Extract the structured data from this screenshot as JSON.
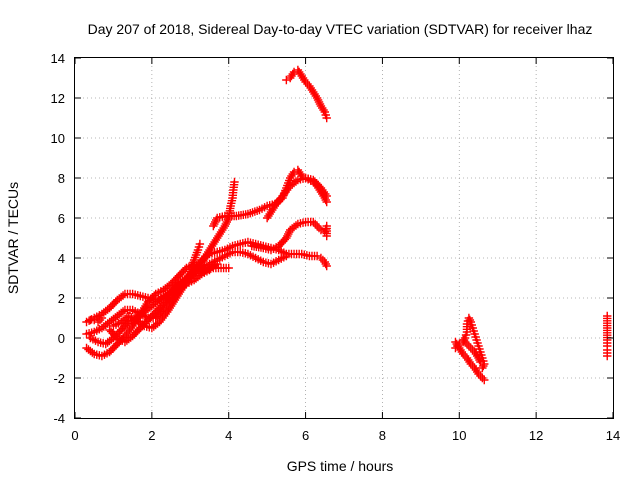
{
  "chart_data": {
    "type": "scatter",
    "title": "Day 207 of 2018, Sidereal Day-to-day VTEC variation (SDTVAR) for receiver lhaz",
    "xlabel": "GPS time / hours",
    "ylabel": "SDTVAR / TECUs",
    "xlim": [
      0,
      14
    ],
    "ylim": [
      -4,
      14
    ],
    "xticks": [
      "0",
      "2",
      "4",
      "6",
      "8",
      "10",
      "12",
      "14"
    ],
    "yticks": [
      "-4",
      "-2",
      "0",
      "2",
      "4",
      "6",
      "8",
      "10",
      "12",
      "14"
    ],
    "grid": true,
    "marker": "plus",
    "color": "#ff0000",
    "series": [
      {
        "points": [
          [
            5.5,
            12.9
          ],
          [
            5.6,
            13.0
          ],
          [
            5.7,
            13.3
          ],
          [
            5.8,
            13.4
          ],
          [
            5.9,
            13.1
          ],
          [
            6.0,
            12.8
          ],
          [
            6.1,
            12.6
          ],
          [
            6.2,
            12.3
          ],
          [
            6.3,
            12.0
          ],
          [
            6.4,
            11.6
          ],
          [
            6.5,
            11.3
          ],
          [
            6.55,
            11.0
          ]
        ]
      },
      {
        "points": [
          [
            3.3,
            3.8
          ],
          [
            3.5,
            4.4
          ],
          [
            3.7,
            5.0
          ],
          [
            3.9,
            5.6
          ],
          [
            4.0,
            6.0
          ],
          [
            4.05,
            6.6
          ],
          [
            4.1,
            7.0
          ],
          [
            4.12,
            7.4
          ],
          [
            4.15,
            7.8
          ]
        ]
      },
      {
        "points": [
          [
            3.6,
            5.6
          ],
          [
            3.7,
            6.0
          ],
          [
            3.9,
            6.1
          ],
          [
            4.2,
            6.1
          ],
          [
            4.5,
            6.2
          ],
          [
            4.8,
            6.4
          ],
          [
            5.0,
            6.6
          ],
          [
            5.2,
            6.7
          ],
          [
            5.4,
            7.0
          ],
          [
            5.5,
            7.5
          ],
          [
            5.6,
            8.0
          ],
          [
            5.7,
            8.3
          ],
          [
            5.8,
            8.4
          ],
          [
            5.9,
            8.1
          ],
          [
            6.0,
            8.0
          ],
          [
            6.2,
            7.8
          ],
          [
            6.3,
            7.6
          ],
          [
            6.4,
            7.3
          ],
          [
            6.5,
            7.0
          ],
          [
            6.55,
            6.8
          ]
        ]
      },
      {
        "points": [
          [
            5.0,
            6.0
          ],
          [
            5.2,
            6.6
          ],
          [
            5.4,
            7.1
          ],
          [
            5.6,
            7.6
          ],
          [
            5.8,
            7.9
          ],
          [
            6.0,
            8.0
          ],
          [
            6.2,
            7.9
          ],
          [
            6.4,
            7.5
          ],
          [
            6.55,
            7.1
          ]
        ]
      },
      {
        "points": [
          [
            4.6,
            4.6
          ],
          [
            4.9,
            4.5
          ],
          [
            5.1,
            4.4
          ],
          [
            5.3,
            4.6
          ],
          [
            5.5,
            5.0
          ],
          [
            5.6,
            5.4
          ],
          [
            5.8,
            5.7
          ],
          [
            6.0,
            5.8
          ],
          [
            6.2,
            5.8
          ],
          [
            6.3,
            5.6
          ],
          [
            6.4,
            5.4
          ],
          [
            6.5,
            5.3
          ],
          [
            6.55,
            5.6
          ],
          [
            6.55,
            5.1
          ]
        ]
      },
      {
        "points": [
          [
            0.3,
            0.8
          ],
          [
            0.5,
            1.0
          ],
          [
            0.7,
            1.2
          ],
          [
            0.9,
            1.5
          ],
          [
            1.1,
            1.9
          ],
          [
            1.3,
            2.2
          ],
          [
            1.5,
            2.2
          ],
          [
            1.7,
            2.1
          ],
          [
            1.9,
            2.0
          ],
          [
            2.1,
            1.9
          ],
          [
            2.3,
            2.0
          ],
          [
            2.5,
            2.3
          ],
          [
            2.7,
            2.7
          ],
          [
            2.9,
            3.0
          ],
          [
            3.1,
            3.4
          ],
          [
            3.3,
            3.9
          ],
          [
            3.5,
            4.2
          ],
          [
            3.7,
            4.3
          ],
          [
            3.9,
            4.4
          ],
          [
            4.1,
            4.6
          ],
          [
            4.3,
            4.7
          ],
          [
            4.5,
            4.8
          ],
          [
            4.7,
            4.7
          ],
          [
            4.9,
            4.6
          ],
          [
            5.1,
            4.5
          ],
          [
            5.3,
            4.4
          ],
          [
            5.5,
            4.2
          ],
          [
            5.7,
            4.2
          ],
          [
            5.9,
            4.2
          ],
          [
            6.1,
            4.1
          ],
          [
            6.3,
            4.1
          ],
          [
            6.4,
            4.0
          ],
          [
            6.5,
            3.8
          ],
          [
            6.55,
            3.6
          ]
        ]
      },
      {
        "points": [
          [
            0.3,
            0.2
          ],
          [
            0.5,
            0.3
          ],
          [
            0.7,
            0.5
          ],
          [
            0.9,
            0.8
          ],
          [
            1.1,
            1.1
          ],
          [
            1.3,
            1.4
          ],
          [
            1.5,
            1.4
          ],
          [
            1.7,
            1.2
          ],
          [
            1.9,
            1.0
          ],
          [
            2.1,
            1.0
          ],
          [
            2.3,
            1.4
          ],
          [
            2.5,
            1.9
          ],
          [
            2.7,
            2.4
          ],
          [
            2.9,
            2.9
          ],
          [
            3.1,
            3.3
          ],
          [
            3.3,
            3.6
          ],
          [
            3.5,
            3.7
          ],
          [
            3.7,
            3.9
          ],
          [
            3.9,
            4.1
          ],
          [
            4.1,
            4.3
          ],
          [
            4.3,
            4.3
          ],
          [
            4.5,
            4.2
          ],
          [
            4.7,
            4.0
          ],
          [
            4.9,
            3.8
          ],
          [
            5.1,
            3.7
          ],
          [
            5.3,
            3.9
          ],
          [
            5.5,
            4.1
          ]
        ]
      },
      {
        "points": [
          [
            0.3,
            -0.5
          ],
          [
            0.5,
            -0.8
          ],
          [
            0.7,
            -0.9
          ],
          [
            0.9,
            -0.7
          ],
          [
            1.1,
            -0.3
          ],
          [
            1.3,
            0.1
          ],
          [
            1.5,
            0.6
          ],
          [
            1.7,
            1.2
          ],
          [
            1.9,
            1.8
          ],
          [
            2.1,
            2.2
          ],
          [
            2.3,
            2.4
          ],
          [
            2.5,
            2.7
          ],
          [
            2.7,
            3.1
          ],
          [
            2.9,
            3.5
          ],
          [
            3.1,
            3.7
          ],
          [
            3.3,
            3.5
          ],
          [
            3.5,
            3.5
          ],
          [
            3.7,
            3.7
          ]
        ]
      },
      {
        "points": [
          [
            0.4,
            0.0
          ],
          [
            0.6,
            -0.2
          ],
          [
            0.8,
            -0.3
          ],
          [
            1.0,
            0.0
          ],
          [
            1.2,
            0.4
          ],
          [
            1.4,
            0.8
          ],
          [
            1.6,
            1.0
          ],
          [
            1.8,
            1.3
          ],
          [
            2.0,
            1.6
          ],
          [
            2.2,
            1.9
          ],
          [
            2.4,
            2.2
          ],
          [
            2.6,
            2.5
          ],
          [
            2.8,
            2.8
          ],
          [
            3.0,
            3.1
          ],
          [
            3.2,
            3.3
          ],
          [
            3.4,
            3.4
          ],
          [
            3.6,
            3.5
          ],
          [
            3.8,
            3.5
          ],
          [
            4.0,
            3.5
          ]
        ]
      },
      {
        "points": [
          [
            0.9,
            0.4
          ],
          [
            1.1,
            0.0
          ],
          [
            1.3,
            -0.2
          ],
          [
            1.5,
            0.1
          ],
          [
            1.7,
            0.5
          ],
          [
            1.9,
            0.9
          ],
          [
            2.1,
            1.3
          ],
          [
            2.3,
            1.7
          ],
          [
            2.5,
            2.1
          ],
          [
            2.7,
            2.4
          ],
          [
            2.9,
            2.7
          ],
          [
            3.1,
            2.9
          ],
          [
            3.3,
            3.2
          ],
          [
            3.5,
            3.4
          ]
        ]
      },
      {
        "points": [
          [
            1.0,
            0.6
          ],
          [
            1.2,
            0.8
          ],
          [
            1.4,
            1.1
          ],
          [
            1.6,
            0.9
          ],
          [
            1.8,
            0.6
          ],
          [
            2.0,
            0.5
          ],
          [
            2.2,
            0.8
          ],
          [
            2.4,
            1.3
          ],
          [
            2.6,
            1.9
          ],
          [
            2.8,
            2.5
          ],
          [
            3.0,
            3.2
          ],
          [
            3.1,
            3.9
          ],
          [
            3.2,
            4.4
          ],
          [
            3.25,
            4.7
          ]
        ]
      },
      {
        "points": [
          [
            0.4,
            0.9
          ],
          [
            0.5,
            0.9
          ],
          [
            0.6,
            0.8
          ],
          [
            0.7,
            1.0
          ]
        ]
      },
      {
        "points": [
          [
            9.9,
            -0.5
          ],
          [
            10.0,
            -0.3
          ],
          [
            10.1,
            -0.2
          ],
          [
            10.15,
            0.0
          ],
          [
            10.2,
            0.3
          ],
          [
            10.2,
            0.7
          ],
          [
            10.25,
            1.0
          ],
          [
            10.3,
            0.8
          ],
          [
            10.35,
            0.5
          ],
          [
            10.4,
            0.2
          ],
          [
            10.45,
            -0.1
          ],
          [
            10.5,
            -0.4
          ],
          [
            10.55,
            -0.7
          ],
          [
            10.6,
            -1.0
          ],
          [
            10.65,
            -1.3
          ],
          [
            10.6,
            -1.5
          ]
        ]
      },
      {
        "points": [
          [
            9.9,
            -0.2
          ],
          [
            10.0,
            -0.5
          ],
          [
            10.1,
            -0.8
          ],
          [
            10.2,
            -1.0
          ],
          [
            10.3,
            -1.3
          ],
          [
            10.4,
            -1.5
          ],
          [
            10.5,
            -1.8
          ],
          [
            10.6,
            -2.0
          ],
          [
            10.65,
            -2.1
          ]
        ]
      },
      {
        "points": [
          [
            10.1,
            -0.1
          ],
          [
            10.2,
            -0.3
          ],
          [
            10.3,
            -0.5
          ],
          [
            10.4,
            -0.7
          ],
          [
            10.5,
            -1.0
          ],
          [
            10.55,
            -1.2
          ]
        ]
      },
      {
        "points": [
          [
            13.85,
            1.1
          ],
          [
            13.85,
            -0.1
          ],
          [
            13.85,
            -0.4
          ],
          [
            13.85,
            -0.6
          ],
          [
            13.85,
            -0.9
          ]
        ]
      }
    ]
  }
}
